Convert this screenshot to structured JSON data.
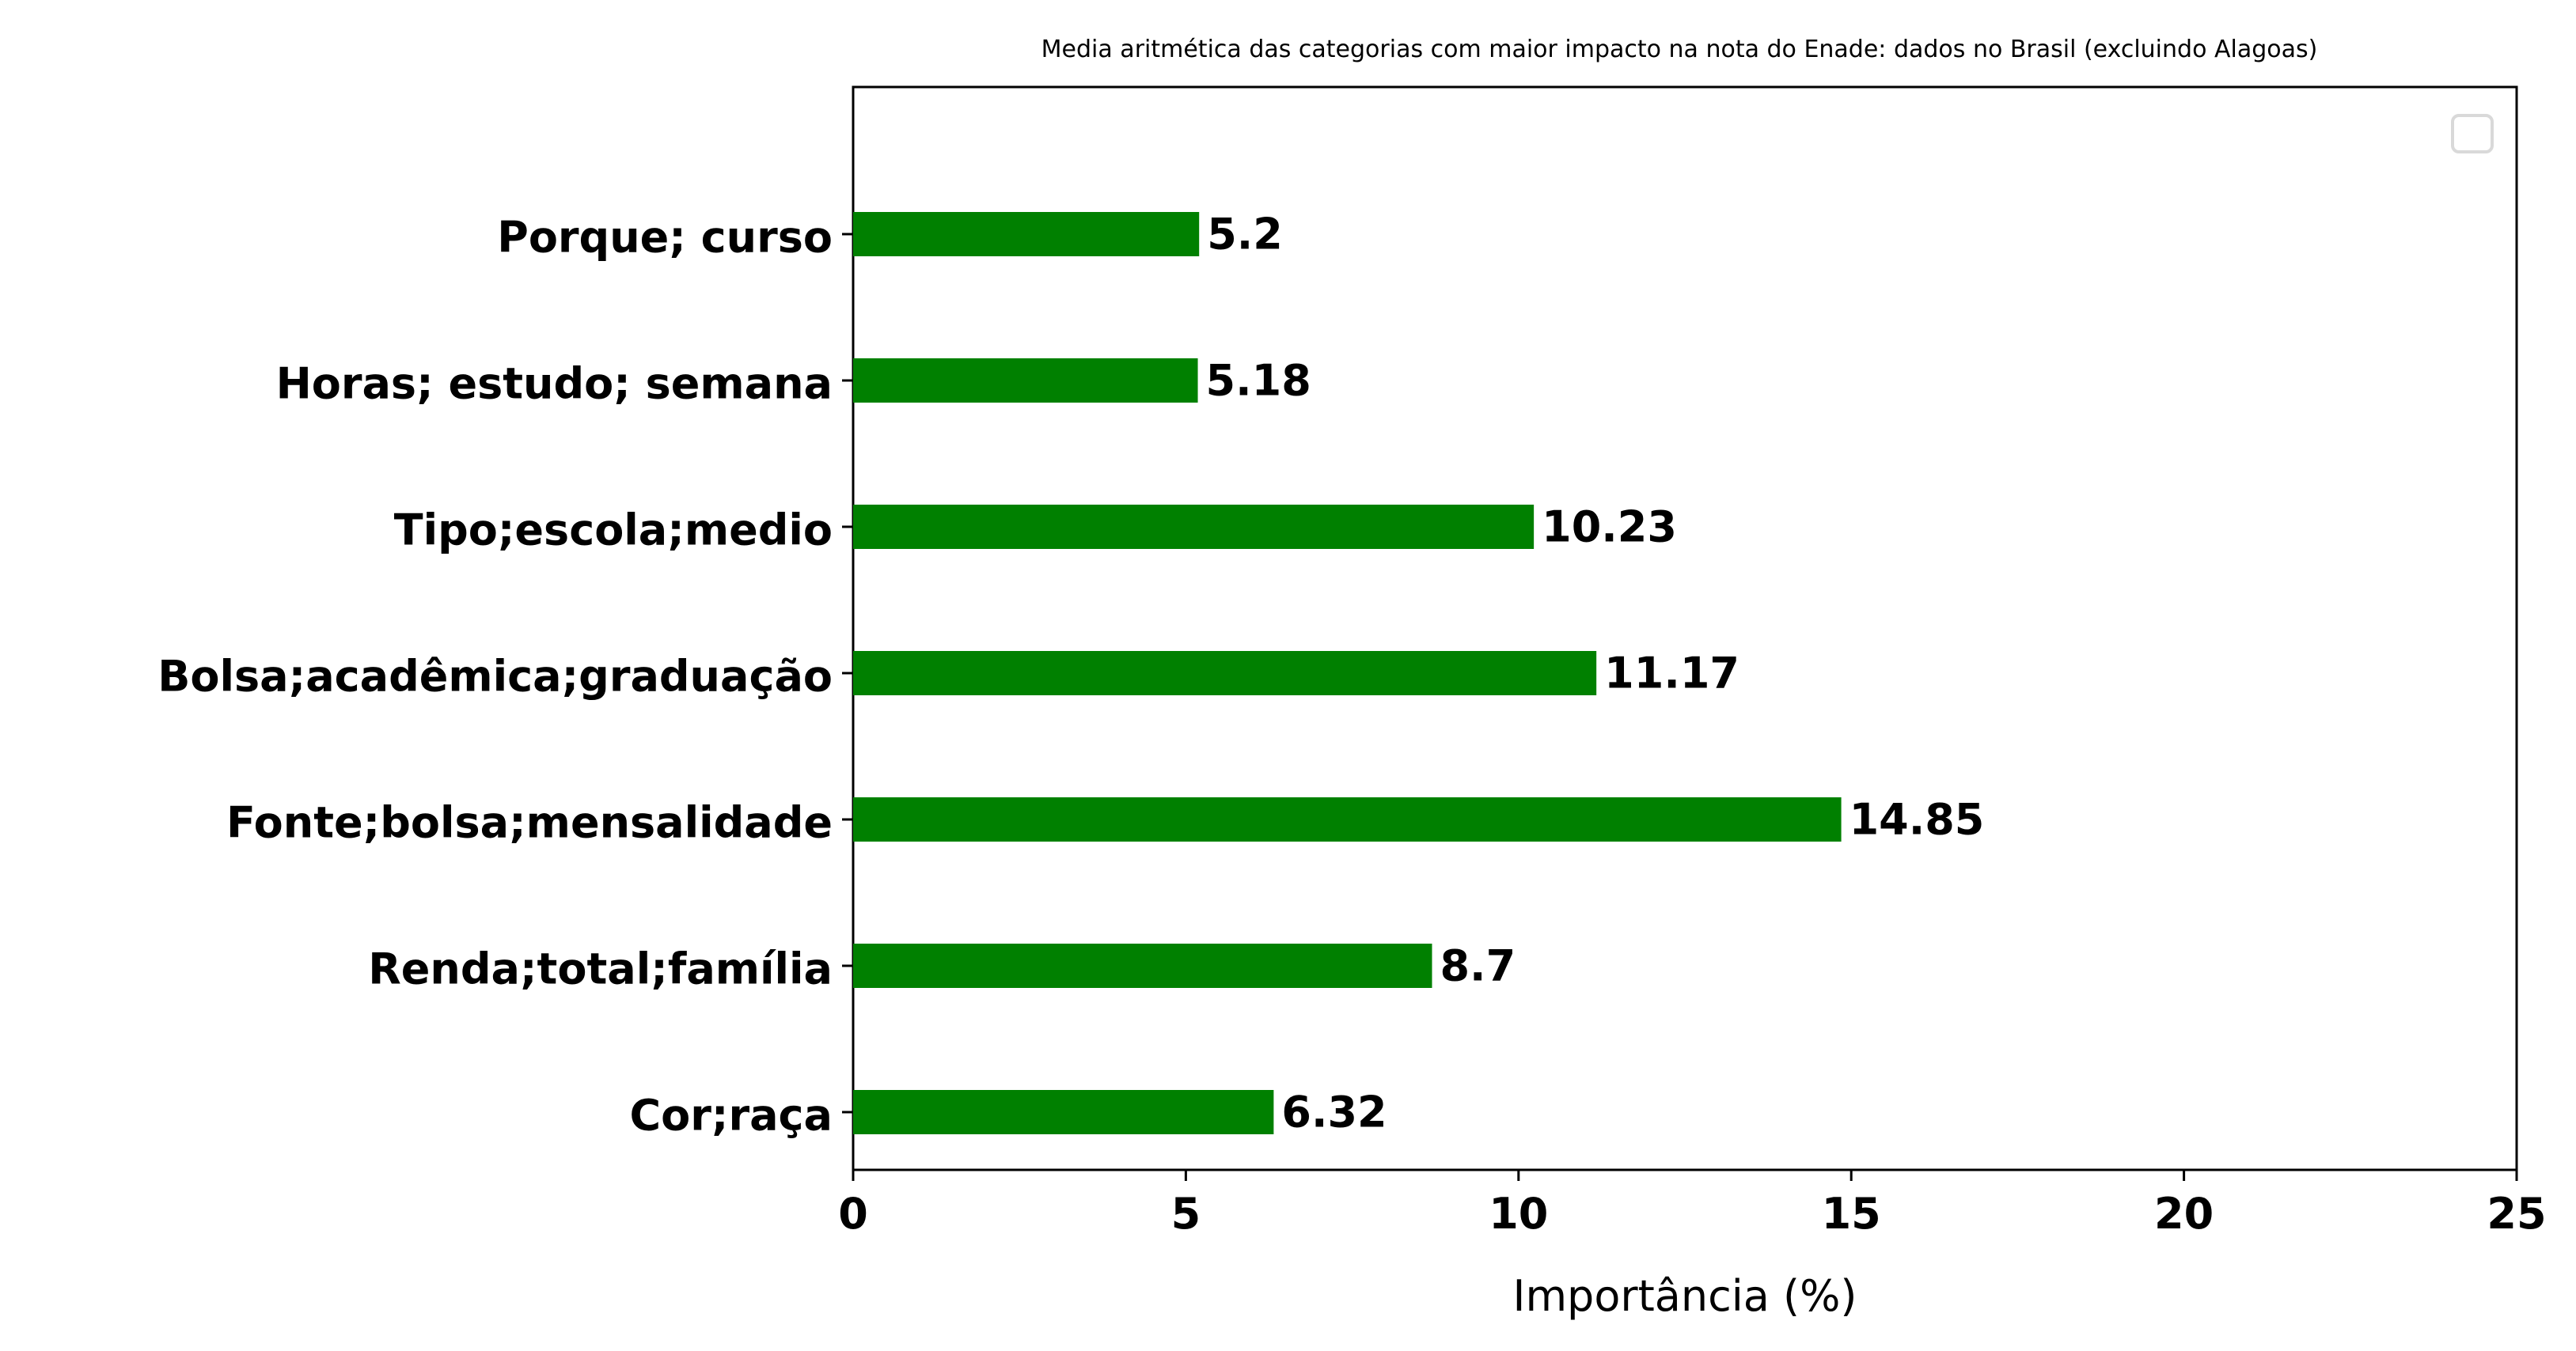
{
  "chart_data": {
    "type": "bar",
    "orientation": "horizontal",
    "title": "Media aritmética das categorias com maior impacto na nota do Enade: dados no Brasil (excluindo Alagoas)",
    "xlabel": "Importância (%)",
    "ylabel": "",
    "categories": [
      "Porque; curso",
      "Horas; estudo; semana",
      "Tipo;escola;medio",
      "Bolsa;acadêmica;graduação",
      "Fonte;bolsa;mensalidade",
      "Renda;total;família",
      "Cor;raça"
    ],
    "values": [
      5.2,
      5.18,
      10.23,
      11.17,
      14.85,
      8.7,
      6.32
    ],
    "data_labels": [
      "5.2",
      "5.18",
      "10.23",
      "11.17",
      "14.85",
      "8.7",
      "6.32"
    ],
    "xlim": [
      0,
      25
    ],
    "xticks": [
      0,
      5,
      10,
      15,
      20,
      25
    ],
    "xtick_labels": [
      "0",
      "5",
      "10",
      "15",
      "20",
      "25"
    ],
    "bar_color": "#008000",
    "grid": false,
    "legend": "top-right (empty)"
  }
}
